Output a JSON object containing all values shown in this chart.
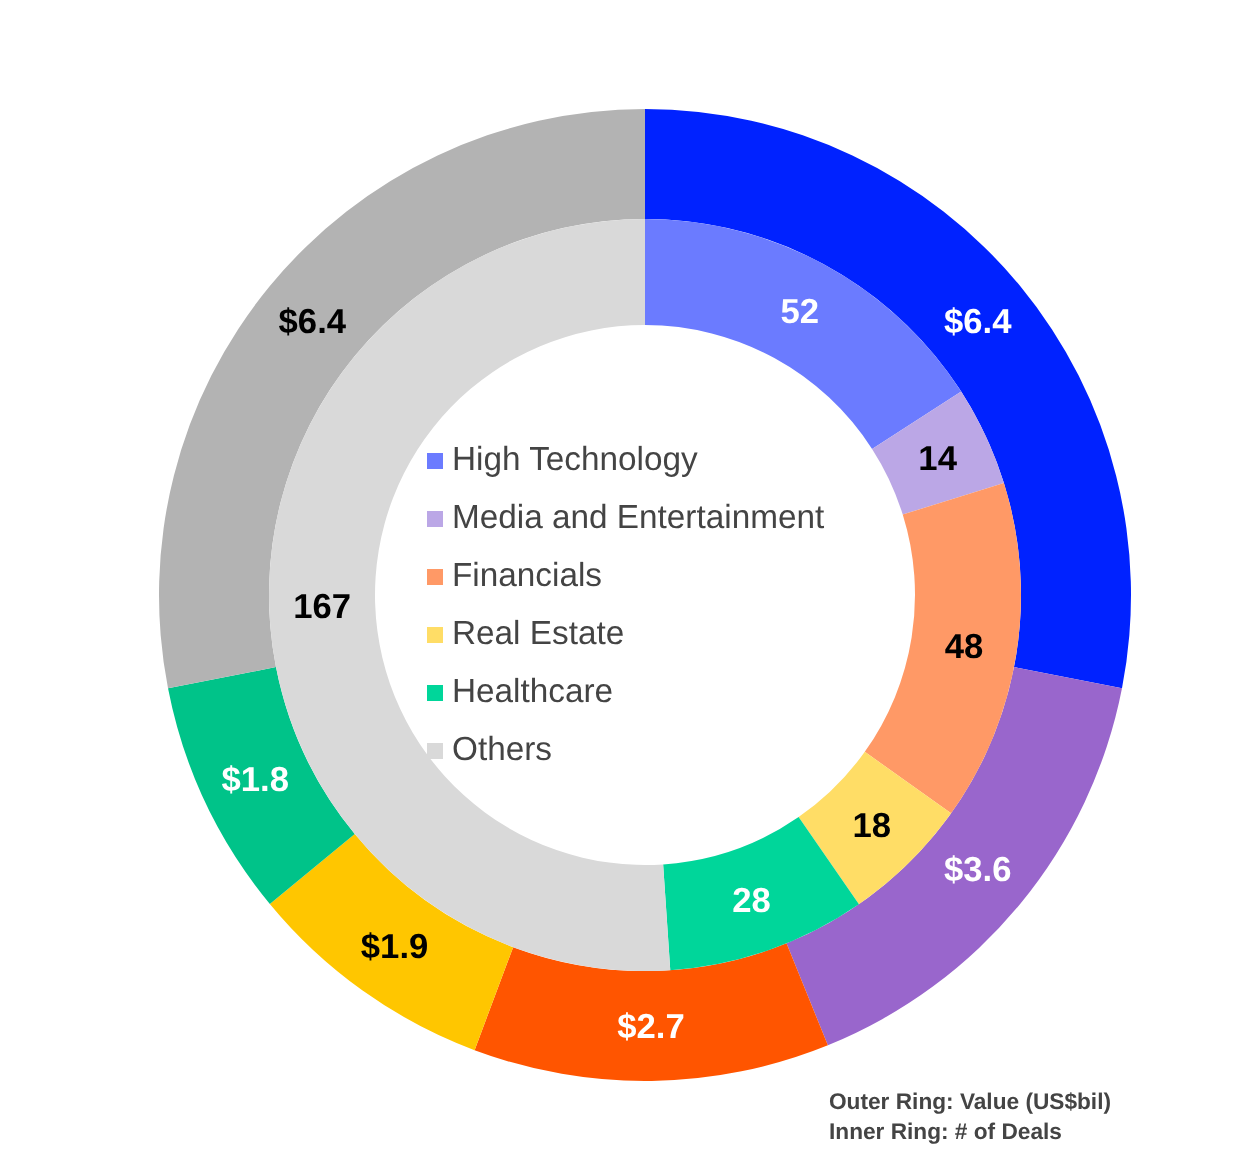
{
  "chart_data": {
    "type": "donut",
    "categories": [
      "High Technology",
      "Media and Entertainment",
      "Financials",
      "Real Estate",
      "Healthcare",
      "Others"
    ],
    "series": [
      {
        "values": [
          6.4,
          3.6,
          2.7,
          1.9,
          1.8,
          6.4
        ],
        "colors": [
          "#0022ff",
          "#9966cc",
          "#ff5500",
          "#ffc600",
          "#00c389",
          "#b3b3b3"
        ],
        "value_labels": [
          "$6.4",
          "$3.6",
          "$2.7",
          "$1.9",
          "$1.8",
          "$6.4"
        ]
      },
      {
        "values": [
          52,
          14,
          48,
          18,
          28,
          167
        ],
        "colors": [
          "#6b7bff",
          "#bba7e6",
          "#ff9966",
          "#ffdd66",
          "#00d69a",
          "#d9d9d9"
        ],
        "value_labels": [
          "52",
          "14",
          "48",
          "18",
          "28",
          "167"
        ]
      }
    ],
    "legend": "center",
    "annotations": [
      "Outer Ring: Value (US$bil)",
      "Inner Ring:  # of Deals"
    ]
  }
}
